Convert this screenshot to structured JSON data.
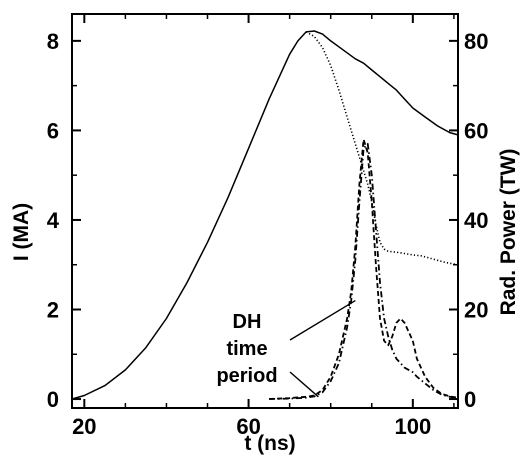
{
  "chart_data": {
    "type": "line",
    "title": "",
    "xlabel": "t (ns)",
    "ylabel_left": "I (MA)",
    "ylabel_right": "Rad. Power (TW)",
    "xlim": [
      17,
      111
    ],
    "ylim_left": [
      -0.2,
      8.6
    ],
    "ylim_right": [
      -2,
      86
    ],
    "xticks": [
      20,
      60,
      100
    ],
    "yticks_left": [
      0,
      2,
      4,
      6,
      8
    ],
    "yticks_right": [
      0,
      20,
      40,
      60,
      80
    ],
    "grid": false,
    "legend": "none",
    "annotation": {
      "lines": [
        "DH",
        "time",
        "period"
      ],
      "arrow_targets": [
        [
          86,
          2.2
        ],
        [
          77,
          0.05
        ]
      ]
    },
    "series": [
      {
        "style": "solid",
        "axis": "left",
        "x": [
          17,
          20,
          25,
          30,
          35,
          40,
          45,
          50,
          55,
          60,
          65,
          68,
          70,
          72,
          74,
          76,
          78,
          80,
          83,
          86,
          88,
          90,
          92,
          94,
          96,
          98,
          100,
          103,
          106,
          109,
          111
        ],
        "y": [
          0.0,
          0.08,
          0.3,
          0.65,
          1.15,
          1.8,
          2.6,
          3.5,
          4.5,
          5.6,
          6.7,
          7.3,
          7.7,
          8.0,
          8.2,
          8.22,
          8.15,
          8.0,
          7.8,
          7.6,
          7.5,
          7.35,
          7.2,
          7.05,
          6.9,
          6.7,
          6.5,
          6.3,
          6.1,
          5.95,
          5.9
        ]
      },
      {
        "style": "dotted",
        "axis": "left",
        "x": [
          74,
          76,
          78,
          80,
          82,
          84,
          86,
          88,
          89,
          90,
          91,
          92,
          93,
          94,
          96,
          98,
          100,
          102,
          104,
          106,
          108,
          111
        ],
        "y": [
          8.2,
          8.1,
          7.85,
          7.45,
          6.9,
          6.3,
          5.7,
          5.1,
          4.8,
          4.4,
          3.9,
          3.5,
          3.35,
          3.3,
          3.28,
          3.25,
          3.22,
          3.2,
          3.15,
          3.1,
          3.05,
          3.0
        ]
      },
      {
        "style": "dashed",
        "axis": "right",
        "x": [
          65,
          70,
          74,
          76,
          78,
          80,
          82,
          84,
          85,
          86,
          87,
          88,
          89,
          90,
          91,
          92,
          93,
          94,
          95,
          96,
          97,
          98,
          99,
          100,
          101,
          103,
          105,
          107,
          109,
          111
        ],
        "y": [
          0,
          0.2,
          0.5,
          0.8,
          2,
          5,
          10,
          18,
          24,
          34,
          48,
          58,
          55,
          44,
          30,
          18,
          13,
          12,
          14,
          17,
          18,
          17,
          15,
          13,
          9,
          5,
          2.5,
          1.2,
          0.6,
          0.3
        ]
      },
      {
        "style": "dashdot",
        "axis": "right",
        "x": [
          65,
          70,
          74,
          76,
          78,
          80,
          82,
          84,
          85,
          86,
          87,
          88,
          89,
          90,
          91,
          92,
          93,
          94,
          95,
          96,
          97,
          98,
          99,
          100,
          101,
          103,
          105,
          107,
          109,
          111
        ],
        "y": [
          0,
          0.1,
          0.3,
          0.6,
          1.5,
          4,
          8,
          16,
          22,
          31,
          44,
          56,
          57,
          50,
          38,
          26,
          18,
          14,
          11,
          9,
          8,
          7,
          6.5,
          6,
          5,
          3.5,
          2,
          1,
          0.5,
          0.2
        ]
      }
    ]
  }
}
